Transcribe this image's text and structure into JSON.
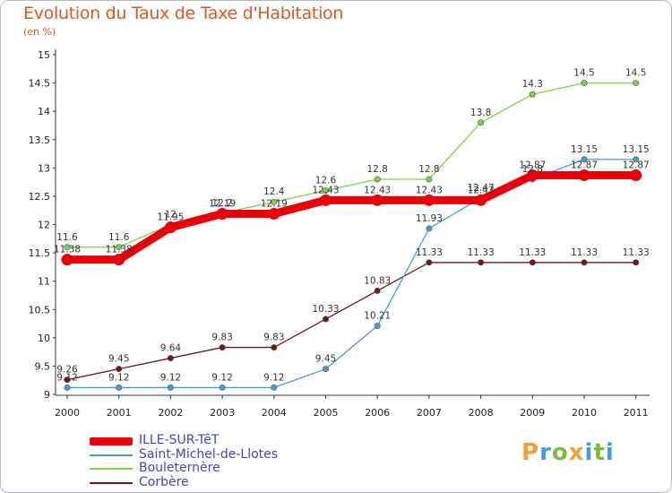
{
  "title": "Evolution du Taux de Taxe d'Habitation",
  "subtitle": "(en %)",
  "logo": {
    "text": "Proxiti",
    "letters": [
      {
        "c": "P",
        "color": "#e8a33c"
      },
      {
        "c": "r",
        "color": "#3aa0d8"
      },
      {
        "c": "o",
        "color": "#7bbd3a"
      },
      {
        "c": "x",
        "color": "#e8a33c"
      },
      {
        "c": "i",
        "color": "#3aa0d8"
      },
      {
        "c": "t",
        "color": "#7bbd3a"
      },
      {
        "c": "i",
        "color": "#3aa0d8"
      }
    ]
  },
  "chart_data": {
    "type": "line",
    "title": "Evolution du Taux de Taxe d'Habitation",
    "subtitle": "(en %)",
    "x": [
      "2000",
      "2001",
      "2002",
      "2003",
      "2004",
      "2005",
      "2006",
      "2007",
      "2008",
      "2009",
      "2010",
      "2011"
    ],
    "ylim": [
      9,
      15
    ],
    "yticks": [
      "9",
      "9.5",
      "10",
      "10.5",
      "11",
      "11.5",
      "12",
      "12.5",
      "13",
      "13.5",
      "14",
      "14.5",
      "15"
    ],
    "grid": false,
    "legend_position": "bottom-left",
    "series": [
      {
        "name": "ILLE-SUR-TêT",
        "color": "#e8000b",
        "values": [
          11.38,
          11.38,
          11.95,
          12.19,
          12.19,
          12.43,
          12.43,
          12.43,
          12.43,
          12.87,
          12.87,
          12.87
        ],
        "labels": [
          "11.38",
          "11.38",
          "11.95",
          "12.19",
          "12.19",
          "12.43",
          "12.43",
          "12.43",
          "12.43",
          "12.87",
          "12.87",
          "12.87"
        ]
      },
      {
        "name": "Saint-Michel-de-Llotes",
        "color": "#4a9ad4",
        "values": [
          9.12,
          9.12,
          9.12,
          9.12,
          9.12,
          9.45,
          10.21,
          11.93,
          12.47,
          12.8,
          13.15,
          13.15
        ],
        "labels": [
          "9.12",
          "9.12",
          "9.12",
          "9.12",
          "9.12",
          "9.45",
          "10.21",
          "11.93",
          "12.47",
          "12.8",
          "13.15",
          "13.15"
        ]
      },
      {
        "name": "Bouleternère",
        "color": "#7ed04a",
        "values": [
          11.6,
          11.6,
          12,
          12.2,
          12.4,
          12.6,
          12.8,
          12.8,
          13.8,
          14.3,
          14.5,
          14.5
        ],
        "labels": [
          "11.6",
          "11.6",
          "12",
          "12.2",
          "12.4",
          "12.6",
          "12.8",
          "12.8",
          "13.8",
          "14.3",
          "14.5",
          "14.5"
        ]
      },
      {
        "name": "Corbère",
        "color": "#6a1a1a",
        "values": [
          9.26,
          9.45,
          9.64,
          9.83,
          9.83,
          10.33,
          10.83,
          11.33,
          11.33,
          11.33,
          11.33,
          11.33
        ],
        "labels": [
          "9.26",
          "9.45",
          "9.64",
          "9.83",
          "9.83",
          "10.33",
          "10.83",
          "11.33",
          "11.33",
          "11.33",
          "11.33",
          "11.33"
        ]
      }
    ]
  }
}
